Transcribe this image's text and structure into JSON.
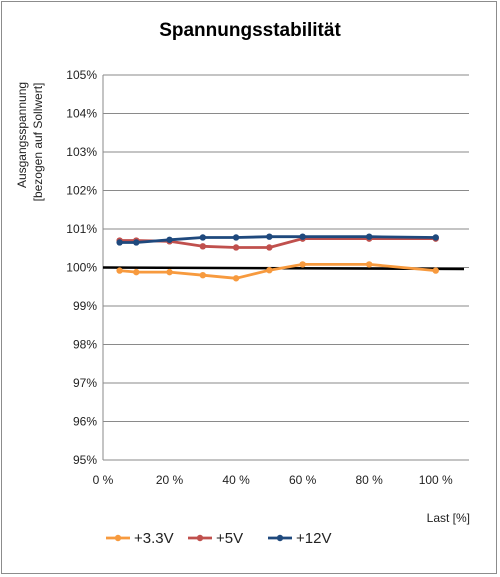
{
  "chart_data": {
    "type": "line",
    "title": "Spannungsstabilität",
    "xlabel": "Last [%]",
    "ylabel_line1": "Ausgangsspannung",
    "ylabel_line2": "[bezogen auf Sollwert]",
    "xlim": [
      0,
      110
    ],
    "ylim": [
      95,
      105
    ],
    "x_ticks": [
      0,
      20,
      40,
      60,
      80,
      100
    ],
    "x_tick_labels": [
      "0 %",
      "20 %",
      "40 %",
      "60 %",
      "80 %",
      "100 %"
    ],
    "y_ticks": [
      95,
      96,
      97,
      98,
      99,
      100,
      101,
      102,
      103,
      104,
      105
    ],
    "y_tick_labels": [
      "95%",
      "96%",
      "97%",
      "98%",
      "99%",
      "100%",
      "101%",
      "102%",
      "103%",
      "104%",
      "105%"
    ],
    "grid": "horizontal",
    "legend_position": "bottom",
    "reference_line": {
      "y": 100,
      "color": "#000000"
    },
    "series": [
      {
        "name": "+3.3V",
        "color": "#f79a3e",
        "x": [
          5,
          10,
          20,
          30,
          40,
          50,
          60,
          80,
          100
        ],
        "values": [
          99.92,
          99.88,
          99.88,
          99.8,
          99.72,
          99.93,
          100.08,
          100.08,
          99.92
        ]
      },
      {
        "name": "+5V",
        "color": "#c0504d",
        "x": [
          5,
          10,
          20,
          30,
          40,
          50,
          60,
          80,
          100
        ],
        "values": [
          100.7,
          100.7,
          100.68,
          100.55,
          100.52,
          100.52,
          100.75,
          100.75,
          100.75
        ]
      },
      {
        "name": "+12V",
        "color": "#1f497d",
        "x": [
          5,
          10,
          20,
          30,
          40,
          50,
          60,
          80,
          100
        ],
        "values": [
          100.65,
          100.65,
          100.72,
          100.78,
          100.78,
          100.8,
          100.8,
          100.8,
          100.78
        ]
      }
    ]
  }
}
